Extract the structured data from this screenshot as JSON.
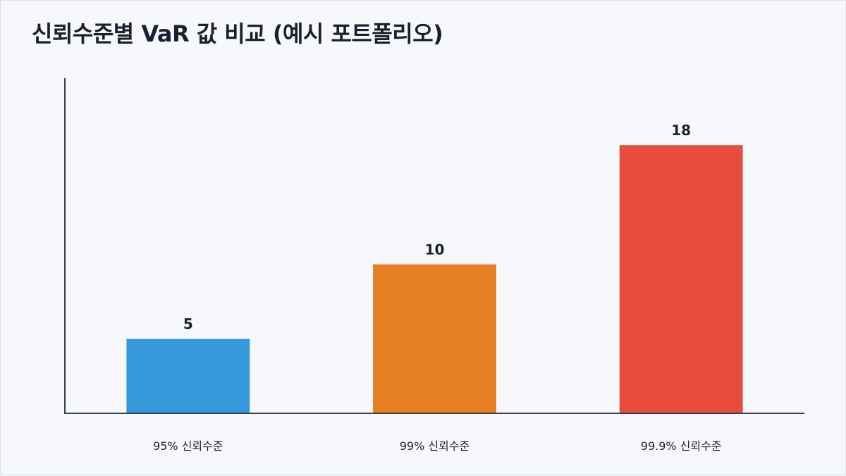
{
  "chart_data": {
    "type": "bar",
    "title": "신뢰수준별 VaR 값 비교 (예시 포트폴리오)",
    "categories": [
      "95% 신뢰수준",
      "99% 신뢰수준",
      "99.9% 신뢰수준"
    ],
    "values": [
      5,
      10,
      18
    ],
    "colors": [
      "#3498db",
      "#e67e22",
      "#e74c3c"
    ],
    "ylim": [
      0,
      22.5
    ],
    "data_labels": [
      "5",
      "10",
      "18"
    ],
    "grid": false,
    "legend": "none"
  }
}
